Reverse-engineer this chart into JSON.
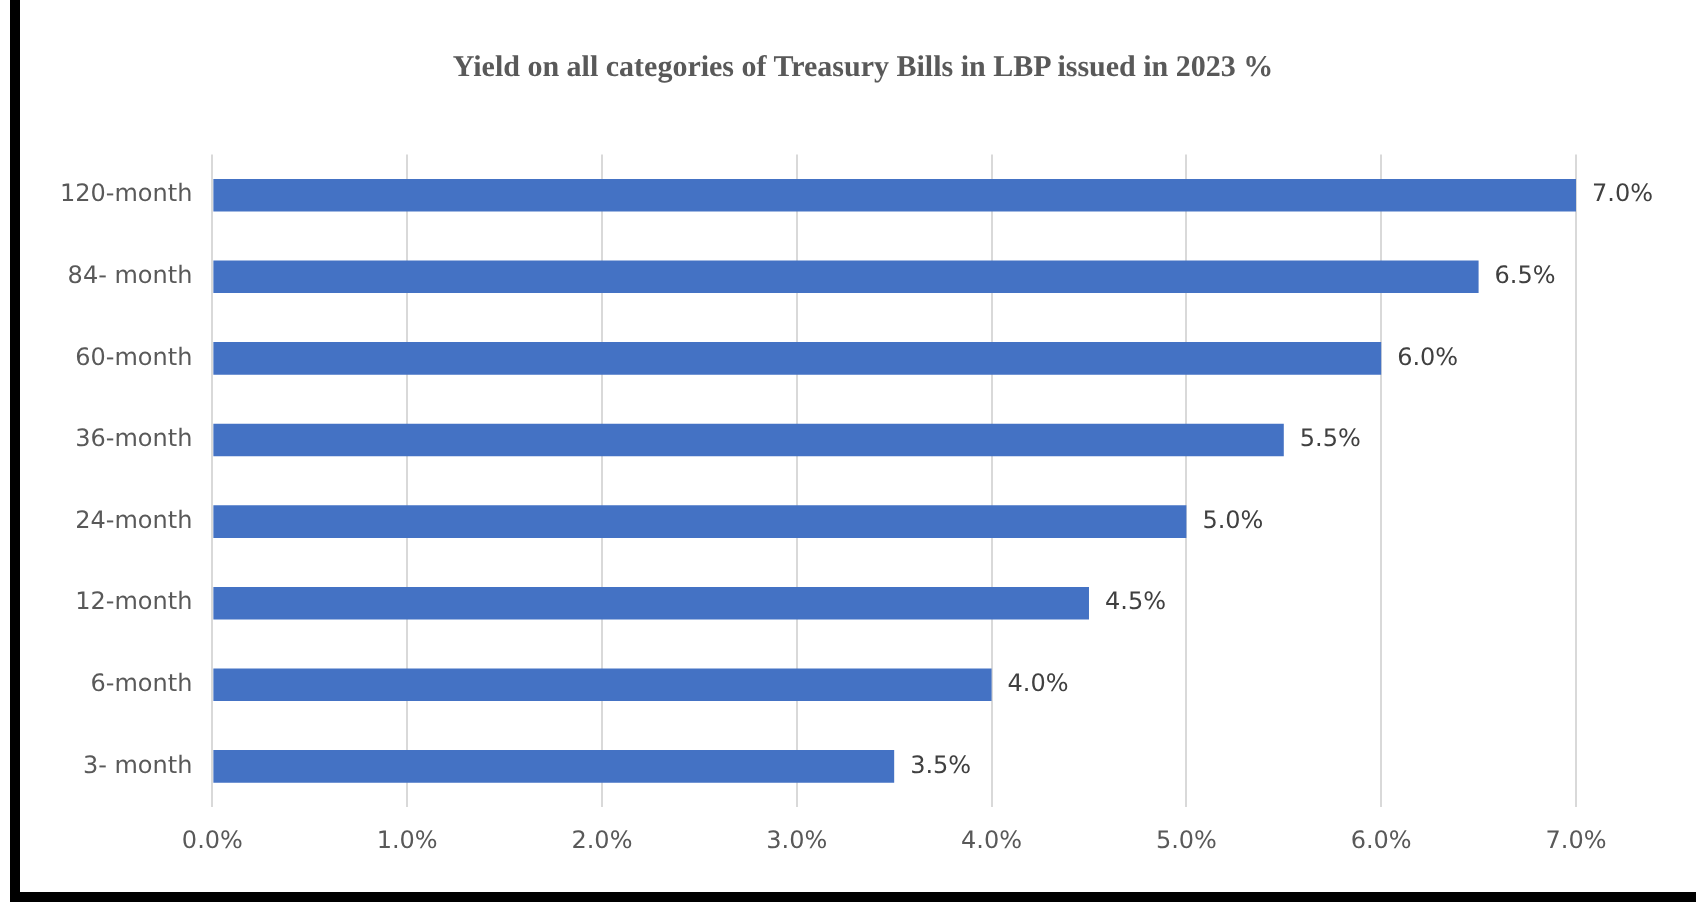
{
  "chart_data": {
    "type": "bar",
    "orientation": "horizontal",
    "title": "Yield on all categories of Treasury Bills in LBP issued in 2023 %",
    "categories": [
      "120-month",
      "84- month",
      "60-month",
      "36-month",
      "24-month",
      "12-month",
      "6-month",
      "3- month"
    ],
    "values": [
      7.0,
      6.5,
      6.0,
      5.5,
      5.0,
      4.5,
      4.0,
      3.5
    ],
    "value_labels": [
      "7.0%",
      "6.5%",
      "6.0%",
      "5.5%",
      "5.0%",
      "4.5%",
      "4.0%",
      "3.5%"
    ],
    "color": "#4472c4",
    "xlim": [
      0,
      7
    ],
    "xticks": [
      {
        "value": 0,
        "label": "0.0%"
      },
      {
        "value": 1,
        "label": "1.0%"
      },
      {
        "value": 2,
        "label": "2.0%"
      },
      {
        "value": 3,
        "label": "3.0%"
      },
      {
        "value": 4,
        "label": "4.0%"
      },
      {
        "value": 5,
        "label": "5.0%"
      },
      {
        "value": 6,
        "label": "6.0%"
      },
      {
        "value": 7,
        "label": "7.0%"
      }
    ],
    "grid": "x",
    "legend": false
  }
}
